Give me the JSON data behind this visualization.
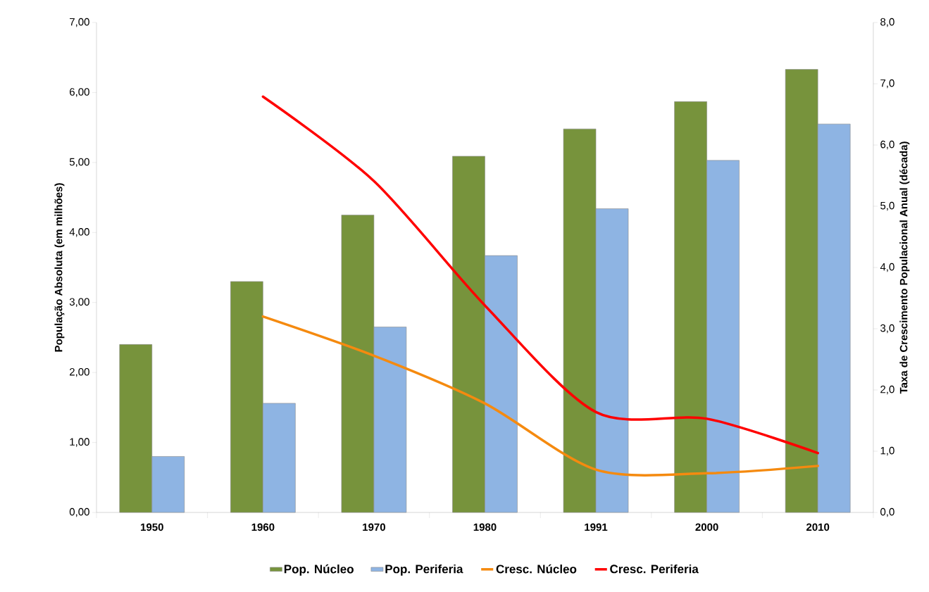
{
  "chart_data": {
    "type": "bar",
    "categories": [
      "1950",
      "1960",
      "1970",
      "1980",
      "1991",
      "2000",
      "2010"
    ],
    "ylabel": "População Absoluta (em milhões)",
    "y2label": "Taxa de Crescimento Populacional Anual (década)",
    "ylim": [
      0,
      7
    ],
    "yticks": [
      {
        "value": 0,
        "label": "0,00"
      },
      {
        "value": 1,
        "label": "1,00"
      },
      {
        "value": 2,
        "label": "2,00"
      },
      {
        "value": 3,
        "label": "3,00"
      },
      {
        "value": 4,
        "label": "4,00"
      },
      {
        "value": 5,
        "label": "5,00"
      },
      {
        "value": 6,
        "label": "6,00"
      },
      {
        "value": 7,
        "label": "7,00"
      }
    ],
    "y2lim": [
      0,
      8
    ],
    "y2ticks": [
      {
        "value": 0,
        "label": "0,0"
      },
      {
        "value": 1,
        "label": "1,0"
      },
      {
        "value": 2,
        "label": "2,0"
      },
      {
        "value": 3,
        "label": "3,0"
      },
      {
        "value": 4,
        "label": "4,0"
      },
      {
        "value": 5,
        "label": "5,0"
      },
      {
        "value": 6,
        "label": "6,0"
      },
      {
        "value": 7,
        "label": "7,0"
      },
      {
        "value": 8,
        "label": "8,0"
      }
    ],
    "legend": "bottom",
    "series": [
      {
        "name": "Pop. Núcleo",
        "color": "#77933c",
        "values": [
          2.4,
          3.3,
          4.25,
          5.09,
          5.48,
          5.87,
          6.33
        ]
      },
      {
        "name": "Pop. Periferia",
        "color": "#8eb4e3",
        "values": [
          0.8,
          1.56,
          2.65,
          3.67,
          4.34,
          5.03,
          5.55
        ]
      },
      {
        "name": "Cresc. Núcleo",
        "type": "line",
        "axis": "y2",
        "color": "#f58a0f",
        "values": [
          null,
          3.2,
          2.56,
          1.78,
          0.7,
          0.64,
          0.76
        ]
      },
      {
        "name": "Cresc. Periferia",
        "type": "line",
        "axis": "y2",
        "color": "#ff0000",
        "values": [
          null,
          6.79,
          5.41,
          3.38,
          1.64,
          1.53,
          0.97
        ]
      }
    ]
  }
}
